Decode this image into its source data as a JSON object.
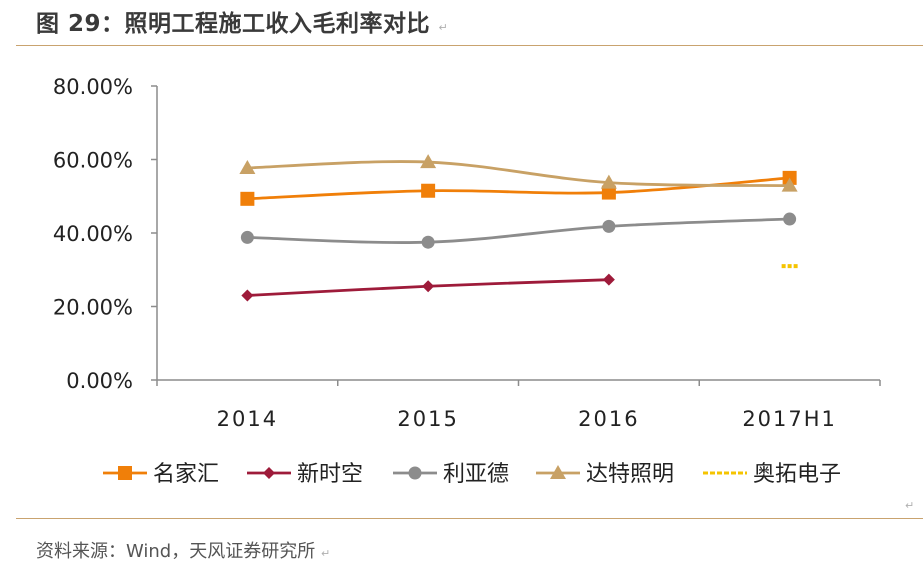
{
  "title": "图 29：照明工程施工收入毛利率对比",
  "source": "资料来源：Wind，天风证券研究所",
  "return_mark": "↵",
  "chart_data": {
    "type": "line",
    "categories": [
      "2014",
      "2015",
      "2016",
      "2017H1"
    ],
    "ylim": [
      0,
      80
    ],
    "yticks": [
      "0.00%",
      "20.00%",
      "40.00%",
      "60.00%",
      "80.00%"
    ],
    "ytick_values": [
      0,
      20,
      40,
      60,
      80
    ],
    "xlabel": "",
    "ylabel": "",
    "legend_position": "bottom",
    "series": [
      {
        "name": "名家汇",
        "values": [
          49.3,
          51.5,
          51.0,
          55.0
        ],
        "color": "#f07f09",
        "marker": "square"
      },
      {
        "name": "新时空",
        "values": [
          23.0,
          25.5,
          27.3,
          null
        ],
        "color": "#9e1b3a",
        "marker": "diamond"
      },
      {
        "name": "利亚德",
        "values": [
          38.8,
          37.5,
          41.8,
          43.8
        ],
        "color": "#8c8c8c",
        "marker": "circle"
      },
      {
        "name": "达特照明",
        "values": [
          57.7,
          59.3,
          53.7,
          52.9
        ],
        "color": "#c8a165",
        "marker": "triangle"
      },
      {
        "name": "奥拓电子",
        "values": [
          null,
          null,
          null,
          31.0
        ],
        "color": "#f5c400",
        "marker": "dash"
      }
    ]
  }
}
